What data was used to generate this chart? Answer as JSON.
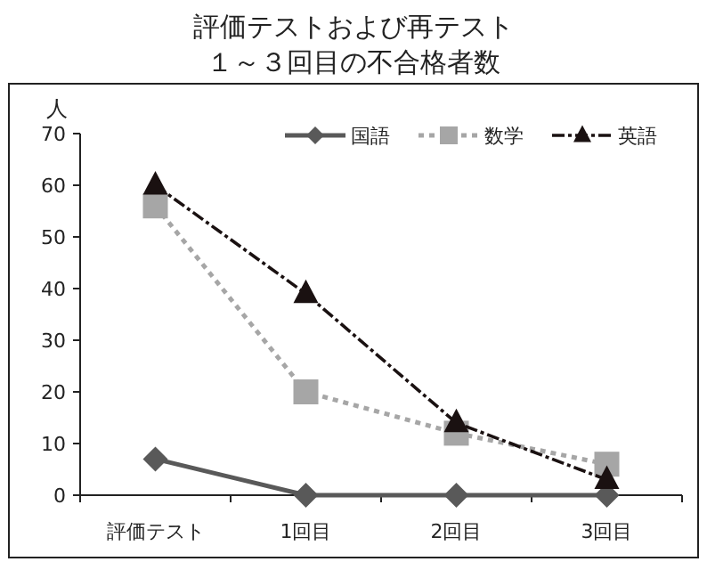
{
  "chart_data": {
    "type": "line",
    "title": "評価テストおよび再テスト",
    "subtitle": "１～３回目の不合格者数",
    "ylabel": "人",
    "categories": [
      "評価テスト",
      "1回目",
      "2回目",
      "3回目"
    ],
    "ylim": [
      0,
      70
    ],
    "yticks": [
      0,
      10,
      20,
      30,
      40,
      50,
      60,
      70
    ],
    "grid": false,
    "legend": "top right",
    "series": [
      {
        "name": "国語",
        "color": "#595959",
        "values": [
          7,
          0,
          0,
          0
        ],
        "marker": "diamond",
        "line_style": "solid"
      },
      {
        "name": "数学",
        "color": "#a6a6a6",
        "values": [
          56,
          20,
          12,
          6
        ],
        "marker": "square",
        "line_style": "dotted"
      },
      {
        "name": "英語",
        "color": "#1a1111",
        "values": [
          60,
          39,
          14,
          3
        ],
        "marker": "triangle",
        "line_style": "dashdot"
      }
    ]
  }
}
